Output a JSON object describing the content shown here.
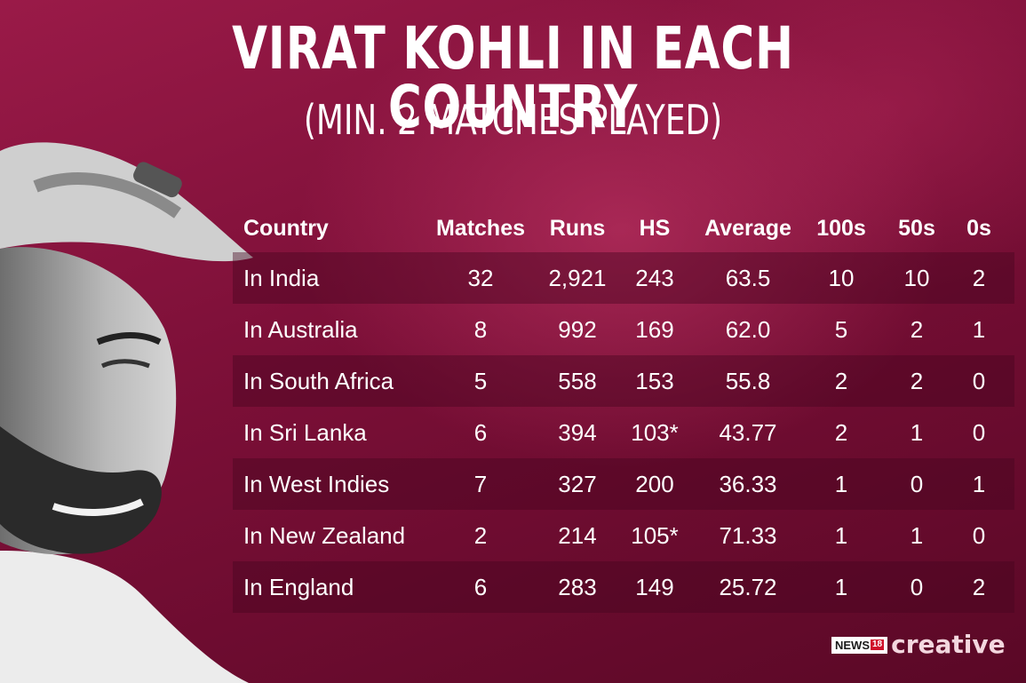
{
  "title": "VIRAT KOHLI IN EACH COUNTRY",
  "subtitle": "(MIN. 2 MATCHES PLAYED)",
  "logo": {
    "news": "NEWS",
    "num": "18",
    "brand": "creative"
  },
  "colors": {
    "background": "#7a0f35",
    "band": "#46051e",
    "text": "#ffffff",
    "logo_red": "#d0112b"
  },
  "chart_data": {
    "type": "table",
    "columns": [
      "Country",
      "Matches",
      "Runs",
      "HS",
      "Average",
      "100s",
      "50s",
      "0s"
    ],
    "rows": [
      [
        "In India",
        "32",
        "2,921",
        "243",
        "63.5",
        "10",
        "10",
        "2"
      ],
      [
        "In Australia",
        "8",
        "992",
        "169",
        "62.0",
        "5",
        "2",
        "1"
      ],
      [
        "In South Africa",
        "5",
        "558",
        "153",
        "55.8",
        "2",
        "2",
        "0"
      ],
      [
        "In Sri Lanka",
        "6",
        "394",
        "103*",
        "43.77",
        "2",
        "1",
        "0"
      ],
      [
        "In West Indies",
        "7",
        "327",
        "200",
        "36.33",
        "1",
        "0",
        "1"
      ],
      [
        "In New Zealand",
        "2",
        "214",
        "105*",
        "71.33",
        "1",
        "1",
        "0"
      ],
      [
        "In England",
        "6",
        "283",
        "149",
        "25.72",
        "1",
        "0",
        "2"
      ]
    ]
  }
}
